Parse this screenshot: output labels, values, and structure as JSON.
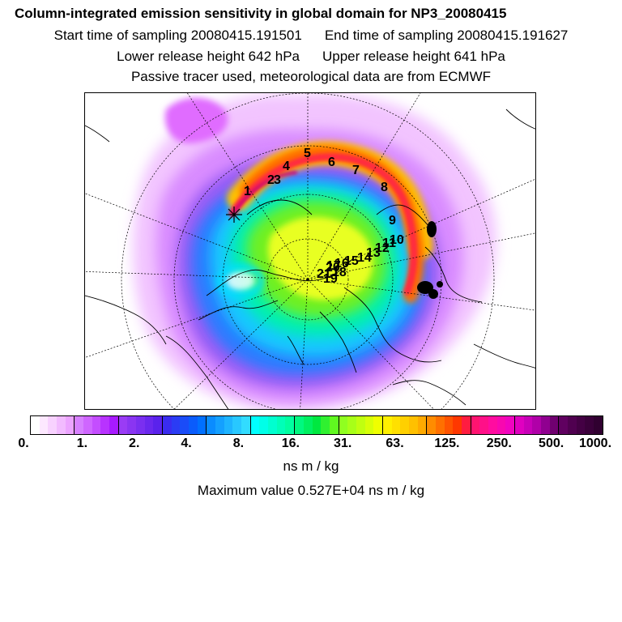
{
  "title": "Column-integrated emission sensitivity in global domain for NP3_20080415",
  "sampling": {
    "start_label": "Start time of sampling 20080415.191501",
    "end_label": "End time of sampling 20080415.191627"
  },
  "release": {
    "lower_label": "Lower release height  642 hPa",
    "upper_label": "Upper release height  641 hPa"
  },
  "info_line": "Passive tracer used, meteorological data are from ECMWF",
  "colorbar": {
    "tick_labels": [
      "0.",
      "1.",
      "2.",
      "4.",
      "8.",
      "16.",
      "31.",
      "63.",
      "125.",
      "250.",
      "500.",
      "1000."
    ],
    "colors": [
      "#ffffff",
      "#fde8ff",
      "#f8d2ff",
      "#f2bbff",
      "#eca4ff",
      "#d780ff",
      "#cf66ff",
      "#c44dff",
      "#b833ff",
      "#a81aff",
      "#9a3cf5",
      "#8a35f2",
      "#7a2ff0",
      "#6a28ee",
      "#5a22ec",
      "#3a2cf0",
      "#2b3cf4",
      "#1a4cf8",
      "#0a5cfc",
      "#0070ff",
      "#0a8cff",
      "#14a0ff",
      "#1eb4ff",
      "#28c8ff",
      "#32dcff",
      "#00ffff",
      "#00ffe8",
      "#00ffd0",
      "#00ffb8",
      "#00ffa0",
      "#00f880",
      "#00f060",
      "#00e840",
      "#30f030",
      "#60f820",
      "#90ff20",
      "#a8ff18",
      "#c0ff10",
      "#d8ff08",
      "#f0ff00",
      "#fff000",
      "#ffe000",
      "#ffd000",
      "#ffc000",
      "#ffaa00",
      "#ff8c00",
      "#ff7000",
      "#ff5400",
      "#ff3800",
      "#ff1c40",
      "#ff1470",
      "#ff1088",
      "#ff0ca0",
      "#f808b0",
      "#f004c0",
      "#e000c0",
      "#c800b8",
      "#b000a8",
      "#900090",
      "#700070",
      "#600060",
      "#500050",
      "#440044",
      "#3a003a",
      "#300030"
    ],
    "units": "ns m / kg",
    "max_value_label": "Maximum value  0.527E+04 ns m / kg"
  },
  "map": {
    "trajectory_labels": [
      {
        "id": "1",
        "text": "1"
      },
      {
        "id": "2",
        "text": "2"
      },
      {
        "id": "3",
        "text": "3"
      },
      {
        "id": "4",
        "text": "4"
      },
      {
        "id": "5",
        "text": "5"
      },
      {
        "id": "6",
        "text": "6"
      },
      {
        "id": "7",
        "text": "7"
      },
      {
        "id": "8",
        "text": "8"
      },
      {
        "id": "9",
        "text": "9"
      },
      {
        "id": "10",
        "text": "10"
      },
      {
        "id": "11",
        "text": "11"
      },
      {
        "id": "12",
        "text": "12"
      },
      {
        "id": "13",
        "text": "13"
      },
      {
        "id": "14",
        "text": "14"
      },
      {
        "id": "15",
        "text": "15"
      },
      {
        "id": "16",
        "text": "16"
      },
      {
        "id": "17",
        "text": "17"
      },
      {
        "id": "18",
        "text": "18"
      },
      {
        "id": "19",
        "text": "19"
      },
      {
        "id": "20",
        "text": "20"
      },
      {
        "id": "21",
        "text": "21"
      }
    ]
  }
}
